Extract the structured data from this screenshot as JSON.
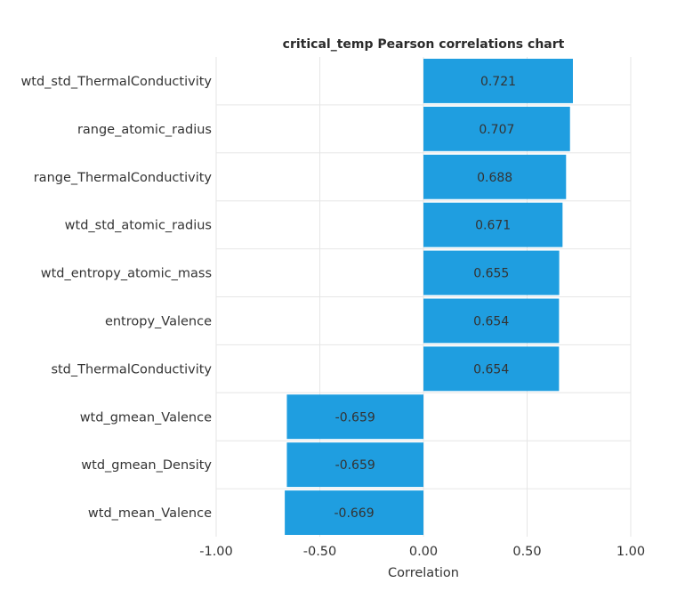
{
  "chart_data": {
    "type": "bar",
    "orientation": "horizontal",
    "title": "critical_temp Pearson correlations chart",
    "xlabel": "Correlation",
    "ylabel": "",
    "xlim": [
      -1.0,
      1.0
    ],
    "x_ticks": [
      "-1.00",
      "-0.50",
      "0.00",
      "0.50",
      "1.00"
    ],
    "grid": true,
    "legend": "none",
    "categories": [
      "wtd_std_ThermalConductivity",
      "range_atomic_radius",
      "range_ThermalConductivity",
      "wtd_std_atomic_radius",
      "wtd_entropy_atomic_mass",
      "entropy_Valence",
      "std_ThermalConductivity",
      "wtd_gmean_Valence",
      "wtd_gmean_Density",
      "wtd_mean_Valence"
    ],
    "values": [
      0.721,
      0.707,
      0.688,
      0.671,
      0.655,
      0.654,
      0.654,
      -0.659,
      -0.659,
      -0.669
    ],
    "value_labels": [
      "0.721",
      "0.707",
      "0.688",
      "0.671",
      "0.655",
      "0.654",
      "0.654",
      "-0.659",
      "-0.659",
      "-0.669"
    ],
    "bar_color": "#1f9ee0",
    "grid_color": "#e6e6e6"
  }
}
